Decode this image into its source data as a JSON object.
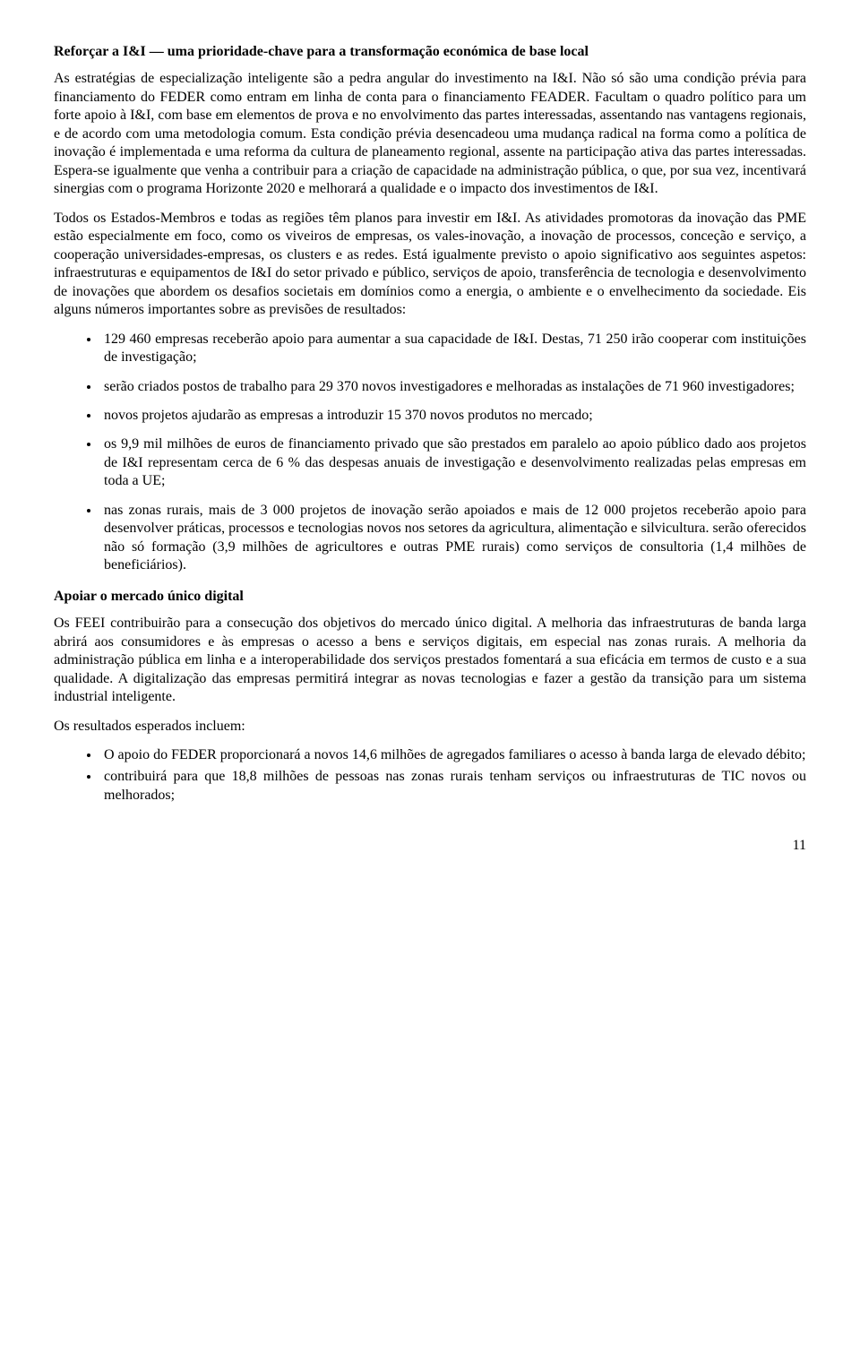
{
  "heading1": "Reforçar a I&I — uma prioridade-chave para a transformação económica de base local",
  "para1": "As estratégias de especialização inteligente são a pedra angular do investimento na I&I. Não só são uma condição prévia para financiamento do FEDER como entram em linha de conta para o financiamento FEADER. Facultam o quadro político para um forte apoio à I&I, com base em elementos de prova e no envolvimento das partes interessadas, assentando nas vantagens regionais, e de acordo com uma metodologia comum. Esta condição prévia desencadeou uma mudança radical na forma como a política de inovação é implementada e uma reforma da cultura de planeamento regional, assente na participação ativa das partes interessadas. Espera-se igualmente que venha a contribuir para a criação de capacidade na administração pública, o que, por sua vez, incentivará sinergias com o programa Horizonte 2020 e melhorará a qualidade e o impacto dos investimentos de I&I.",
  "para2": "Todos os Estados-Membros e todas as regiões têm planos para investir em I&I. As atividades promotoras da inovação das PME estão especialmente em foco, como os viveiros de empresas, os vales-inovação, a inovação de processos, conceção e serviço, a cooperação universidades-empresas, os clusters e as redes. Está igualmente previsto o apoio significativo aos seguintes aspetos: infraestruturas e equipamentos de I&I do setor privado e público, serviços de apoio, transferência de tecnologia e desenvolvimento de inovações que abordem os desafios societais em domínios como a energia, o ambiente e o envelhecimento da sociedade. Eis alguns números importantes sobre as previsões de resultados:",
  "bullets1": {
    "b1": "129 460 empresas receberão apoio para aumentar a sua capacidade de I&I. Destas, 71 250 irão cooperar com instituições de investigação;",
    "b2": "serão criados postos de trabalho para 29 370 novos investigadores e melhoradas as instalações de 71 960 investigadores;",
    "b3": "novos projetos ajudarão as empresas a introduzir 15 370 novos produtos no mercado;",
    "b4": "os 9,9 mil milhões de euros de financiamento privado que são prestados em paralelo ao apoio público dado aos projetos de I&I representam cerca de 6 % das despesas anuais de investigação e desenvolvimento realizadas pelas empresas em toda a UE;",
    "b5": "nas zonas rurais, mais de 3 000 projetos de inovação serão apoiados e mais de 12 000 projetos receberão apoio para desenvolver práticas, processos e tecnologias novos nos setores da agricultura, alimentação e silvicultura. serão oferecidos não só formação (3,9 milhões de agricultores e outras PME rurais) como serviços de consultoria (1,4 milhões de beneficiários)."
  },
  "heading2": "Apoiar o mercado único digital",
  "para3": "Os FEEI contribuirão para a consecução dos objetivos do mercado único digital. A melhoria das infraestruturas de banda larga abrirá aos consumidores e às empresas o acesso a bens e serviços digitais, em especial nas zonas rurais. A melhoria da administração pública em linha e a interoperabilidade dos serviços prestados fomentará a sua eficácia em termos de custo e a sua qualidade. A digitalização das empresas permitirá integrar as novas tecnologias e fazer a gestão da transição para um sistema industrial inteligente.",
  "para4": "Os resultados esperados incluem:",
  "bullets2": {
    "b1": "O apoio do FEDER proporcionará a novos 14,6 milhões de agregados familiares o acesso à banda larga de elevado débito;",
    "b2": "contribuirá para que 18,8 milhões de pessoas nas zonas rurais tenham serviços ou infraestruturas de TIC novos ou melhorados;"
  },
  "page_number": "11"
}
